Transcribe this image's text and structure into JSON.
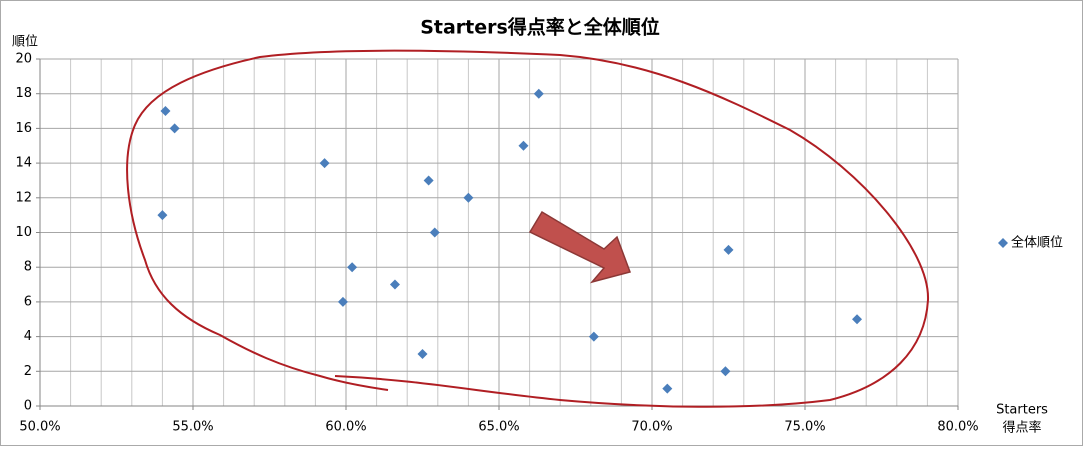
{
  "chart_data": {
    "type": "scatter",
    "title": "Starters得点率と全体順位",
    "x_label": [
      "Starters",
      "得点率"
    ],
    "y_label": "順位",
    "series": [
      {
        "name": "全体順位",
        "color": "#4a7ebb",
        "x": [
          54.1,
          54.4,
          54.0,
          59.3,
          60.2,
          59.9,
          61.6,
          62.7,
          62.9,
          62.5,
          64.0,
          65.8,
          66.3,
          68.1,
          70.5,
          72.4,
          72.5,
          76.7
        ],
        "values": [
          17,
          16,
          11,
          14,
          8,
          6,
          7,
          13,
          10,
          3,
          12,
          15,
          18,
          4,
          1,
          2,
          9,
          5
        ]
      }
    ],
    "xlim": [
      50,
      80
    ],
    "xticks": [
      {
        "value": 50,
        "label": "50.0%"
      },
      {
        "value": 55,
        "label": "55.0%"
      },
      {
        "value": 60,
        "label": "60.0%"
      },
      {
        "value": 65,
        "label": "65.0%"
      },
      {
        "value": 70,
        "label": "70.0%"
      },
      {
        "value": 75,
        "label": "75.0%"
      },
      {
        "value": 80,
        "label": "80.0%"
      }
    ],
    "xminorticks": [
      51,
      52,
      53,
      54,
      56,
      57,
      58,
      59,
      61,
      62,
      63,
      64,
      66,
      67,
      68,
      69,
      71,
      72,
      73,
      74,
      76,
      77,
      78,
      79
    ],
    "ylim": [
      0,
      20
    ],
    "yticks": [
      0,
      2,
      4,
      6,
      8,
      10,
      12,
      14,
      16,
      18,
      20
    ],
    "grid": true,
    "legend": "right"
  }
}
